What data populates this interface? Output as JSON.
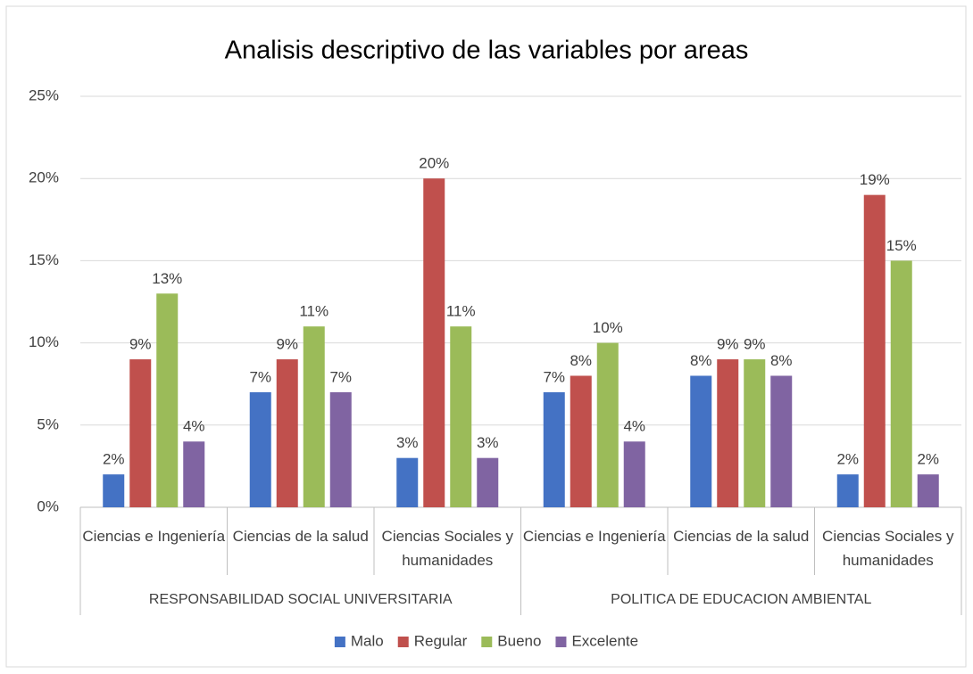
{
  "chart_data": {
    "type": "bar",
    "title": "Analisis descriptivo de las variables por areas",
    "categories": [
      "Ciencias e Ingeniería",
      "Ciencias de la salud",
      "Ciencias Sociales y humanidades",
      "Ciencias e Ingeniería",
      "Ciencias de la salud",
      "Ciencias Sociales y humanidades"
    ],
    "groups": [
      "RESPONSABILIDAD SOCIAL UNIVERSITARIA",
      "POLITICA DE  EDUCACION AMBIENTAL"
    ],
    "series": [
      {
        "name": "Malo",
        "color": "#4472c4",
        "values": [
          2,
          7,
          3,
          7,
          8,
          2
        ],
        "value_labels": [
          "2%",
          "7%",
          "3%",
          "7%",
          "8%",
          "2%"
        ]
      },
      {
        "name": "Regular",
        "color": "#c0504d",
        "values": [
          9,
          9,
          20,
          8,
          9,
          19
        ],
        "value_labels": [
          "9%",
          "9%",
          "20%",
          "8%",
          "9%",
          "19%"
        ]
      },
      {
        "name": "Bueno",
        "color": "#9bbb59",
        "values": [
          13,
          11,
          11,
          10,
          9,
          15
        ],
        "value_labels": [
          "13%",
          "11%",
          "11%",
          "10%",
          "9%",
          "15%"
        ]
      },
      {
        "name": "Excelente",
        "color": "#8064a2",
        "values": [
          4,
          7,
          3,
          4,
          8,
          2
        ],
        "value_labels": [
          "4%",
          "7%",
          "3%",
          "4%",
          "8%",
          "2%"
        ]
      }
    ],
    "ylim": [
      0,
      25
    ],
    "yticks": [
      {
        "value": 0,
        "label": "0%"
      },
      {
        "value": 5,
        "label": "5%"
      },
      {
        "value": 10,
        "label": "10%"
      },
      {
        "value": 15,
        "label": "15%"
      },
      {
        "value": 20,
        "label": "20%"
      },
      {
        "value": 25,
        "label": "25%"
      }
    ],
    "grid": true,
    "legend": "bottom"
  }
}
